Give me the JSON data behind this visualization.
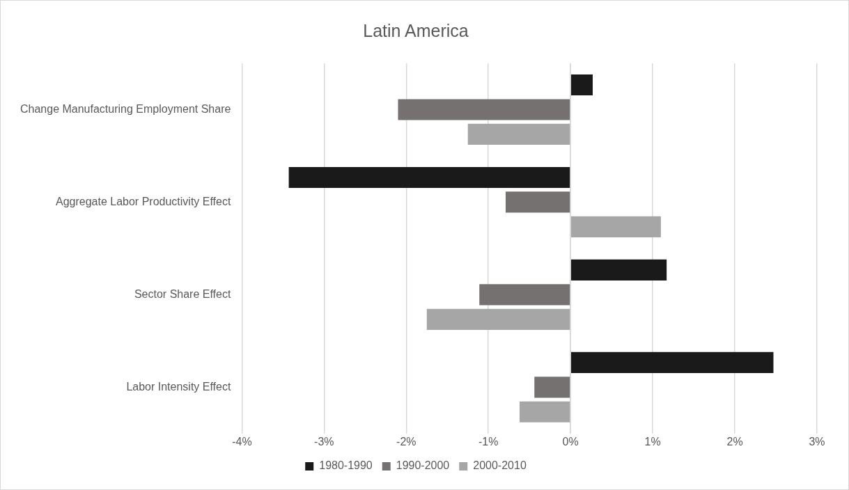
{
  "chart_data": {
    "type": "bar",
    "orientation": "horizontal",
    "title": "Latin America",
    "categories": [
      "Change Manufacturing Employment Share",
      "Aggregate Labor Productivity Effect",
      "Sector Share Effect",
      "Labor Intensity Effect"
    ],
    "series": [
      {
        "name": "1980-1990",
        "color": "#1a1a1a",
        "values": [
          0.27,
          -3.43,
          1.17,
          2.47
        ]
      },
      {
        "name": "1990-2000",
        "color": "#767171",
        "values": [
          -2.1,
          -0.79,
          -1.11,
          -0.44
        ]
      },
      {
        "name": "2000-2010",
        "color": "#a6a6a6",
        "values": [
          -1.25,
          1.1,
          -1.75,
          -0.62
        ]
      }
    ],
    "xlim": [
      -4,
      3
    ],
    "xticks": [
      {
        "value": -4,
        "label": "-4%"
      },
      {
        "value": -3,
        "label": "-3%"
      },
      {
        "value": -2,
        "label": "-2%"
      },
      {
        "value": -1,
        "label": "-1%"
      },
      {
        "value": 0,
        "label": "0%"
      },
      {
        "value": 1,
        "label": "1%"
      },
      {
        "value": 2,
        "label": "2%"
      },
      {
        "value": 3,
        "label": "3%"
      }
    ],
    "grid": "x",
    "legend": "bottom"
  }
}
